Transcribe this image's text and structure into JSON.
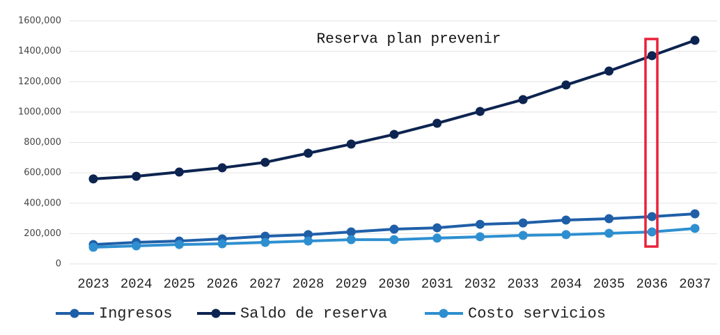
{
  "chart_data": {
    "type": "line",
    "title": "Reserva plan prevenir",
    "categories": [
      "2023",
      "2024",
      "2025",
      "2026",
      "2027",
      "2028",
      "2029",
      "2030",
      "2031",
      "2032",
      "2033",
      "2034",
      "2035",
      "2036",
      "2037"
    ],
    "series": [
      {
        "name": "Ingresos",
        "color": "#1f5fa8",
        "values": [
          128000,
          142000,
          151000,
          165000,
          183000,
          193000,
          211000,
          229000,
          238000,
          261000,
          270000,
          289000,
          298000,
          312000,
          330000
        ]
      },
      {
        "name": "Saldo de reserva",
        "color": "#0d2450",
        "values": [
          560000,
          577000,
          605000,
          633000,
          669000,
          729000,
          789000,
          853000,
          926000,
          1004000,
          1082000,
          1178000,
          1270000,
          1371000,
          1472000
        ]
      },
      {
        "name": "Costo servicios",
        "color": "#2e8fd0",
        "values": [
          110000,
          119000,
          128000,
          133000,
          142000,
          151000,
          160000,
          160000,
          170000,
          179000,
          188000,
          193000,
          202000,
          211000,
          234000
        ]
      }
    ],
    "ylim": [
      0,
      1600000
    ],
    "yticks": [
      0,
      {
        "value": 200000,
        "label": "200,000"
      },
      {
        "value": 400000,
        "label": "400,000"
      },
      {
        "value": 600000,
        "label": "600,000"
      },
      {
        "value": 800000,
        "label": "800,000"
      },
      {
        "value": 1000000,
        "label": "1000,000"
      },
      {
        "value": 1200000,
        "label": "1200,000"
      },
      {
        "value": 1400000,
        "label": "1400,000"
      },
      {
        "value": 1600000,
        "label": "1600,000"
      }
    ],
    "grid": true
  }
}
